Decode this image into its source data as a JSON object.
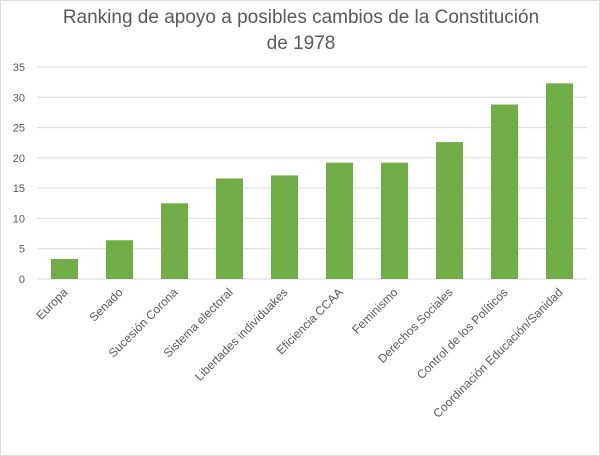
{
  "chart_data": {
    "type": "bar",
    "title_line1": "Ranking de apoyo a posibles cambios de la Constitución",
    "title_line2": "de 1978",
    "categories": [
      "Europa",
      "Senado",
      "Sucesión Corona",
      "Sistema electoral",
      "Libertades individuakes",
      "Eficiencia CCAA",
      "Feminismo",
      "Derechos Sociales",
      "Control de los Políticos",
      "Coordinación Educación/Sanidad"
    ],
    "values": [
      3.3,
      6.4,
      12.5,
      16.6,
      17.1,
      19.2,
      19.2,
      22.6,
      28.8,
      32.3
    ],
    "yticks": [
      0,
      5,
      10,
      15,
      20,
      25,
      30,
      35
    ],
    "ylim": [
      0,
      35
    ],
    "xlabel": "",
    "ylabel": "",
    "grid": true,
    "bar_color": "#70ad47",
    "grid_color": "#d9d9d9"
  }
}
